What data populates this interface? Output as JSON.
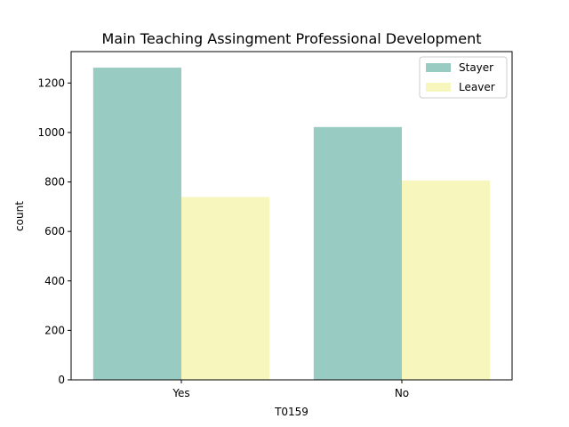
{
  "chart_data": {
    "type": "bar",
    "title": "Main Teaching Assingment Professional Development",
    "xlabel": "T0159",
    "ylabel": "count",
    "categories": [
      "Yes",
      "No"
    ],
    "series": [
      {
        "name": "Stayer",
        "values": [
          1262,
          1022
        ],
        "color": "#98cbc2"
      },
      {
        "name": "Leaver",
        "values": [
          739,
          806
        ],
        "color": "#f6f6bd"
      }
    ],
    "ylim": [
      0,
      1327
    ],
    "yticks": [
      0,
      200,
      400,
      600,
      800,
      1000,
      1200
    ],
    "legend": "top-right",
    "grid": false
  }
}
